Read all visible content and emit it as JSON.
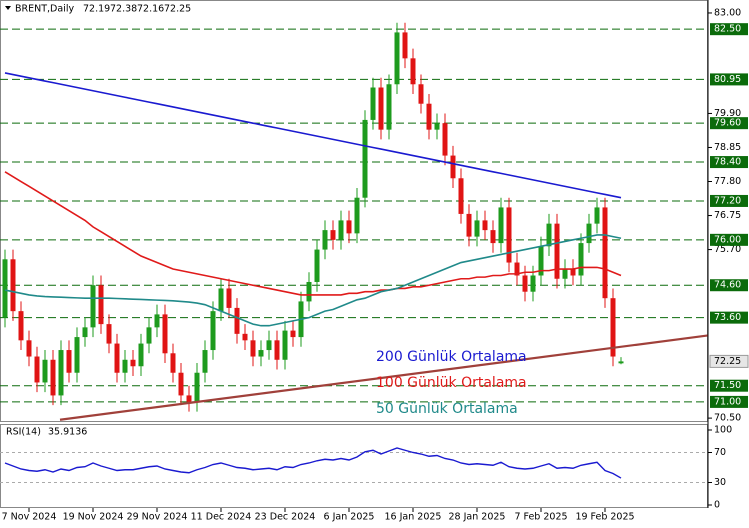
{
  "chart_data": {
    "type": "candlestick",
    "title": "BRENT,Daily",
    "categories": [
      null,
      null,
      null,
      "7 Nov 2024",
      null,
      null,
      null,
      null,
      null,
      null,
      null,
      "19 Nov 2024",
      null,
      null,
      null,
      null,
      null,
      null,
      null,
      "29 Nov 2024",
      null,
      null,
      null,
      null,
      null,
      null,
      null,
      "11 Dec 2024",
      null,
      null,
      null,
      null,
      null,
      null,
      null,
      "23 Dec 2024",
      null,
      null,
      null,
      null,
      null,
      null,
      null,
      "6 Jan 2025",
      null,
      null,
      null,
      null,
      null,
      null,
      null,
      "16 Jan 2025",
      null,
      null,
      null,
      null,
      null,
      null,
      null,
      "28 Jan 2025",
      null,
      null,
      null,
      null,
      null,
      null,
      null,
      "7 Feb 2025",
      null,
      null,
      null,
      null,
      null,
      null,
      null,
      "19 Feb 2025",
      null,
      null
    ],
    "ohlc": {
      "open": [
        73.6,
        75.4,
        73.8,
        72.9,
        72.4,
        71.6,
        72.3,
        71.2,
        72.6,
        71.9,
        73.0,
        73.3,
        74.6,
        73.4,
        72.8,
        71.9,
        72.3,
        72.1,
        72.8,
        73.3,
        73.7,
        72.5,
        71.9,
        71.2,
        71.0,
        71.9,
        72.6,
        73.8,
        74.5,
        73.9,
        73.1,
        72.9,
        72.4,
        72.6,
        72.9,
        72.3,
        73.2,
        73.0,
        74.1,
        74.7,
        75.7,
        76.3,
        76.0,
        76.6,
        76.2,
        77.3,
        79.7,
        80.7,
        79.4,
        80.8,
        82.4,
        81.6,
        80.8,
        80.2,
        79.4,
        79.6,
        78.6,
        77.9,
        76.8,
        76.1,
        76.6,
        76.3,
        75.9,
        77.0,
        75.3,
        74.9,
        74.4,
        74.9,
        75.8,
        76.5,
        74.8,
        75.1,
        74.9,
        75.9,
        76.5,
        77.0,
        74.2,
        72.19
      ],
      "high": [
        75.7,
        75.7,
        74.1,
        73.2,
        72.7,
        72.6,
        72.6,
        72.9,
        72.9,
        73.3,
        73.6,
        74.9,
        74.9,
        73.7,
        73.1,
        72.6,
        72.6,
        73.1,
        73.6,
        74.0,
        74.0,
        72.8,
        72.2,
        71.5,
        72.2,
        72.9,
        74.1,
        74.8,
        74.8,
        74.2,
        73.4,
        73.2,
        72.9,
        73.2,
        73.2,
        73.5,
        73.5,
        74.4,
        75.0,
        76.0,
        76.6,
        76.6,
        76.9,
        76.9,
        77.6,
        80.0,
        81.0,
        81.0,
        81.1,
        82.7,
        82.7,
        81.9,
        81.1,
        80.5,
        79.9,
        79.9,
        78.9,
        78.2,
        77.1,
        76.9,
        76.9,
        76.6,
        77.3,
        77.3,
        75.6,
        75.2,
        75.2,
        76.1,
        76.8,
        76.8,
        75.4,
        75.4,
        76.2,
        76.8,
        77.3,
        77.3,
        74.5,
        72.38
      ],
      "low": [
        73.3,
        73.5,
        72.6,
        72.1,
        71.3,
        71.3,
        70.9,
        70.9,
        71.6,
        71.6,
        72.7,
        73.0,
        73.1,
        72.5,
        71.6,
        71.6,
        71.8,
        71.8,
        72.5,
        73.0,
        72.2,
        71.6,
        70.9,
        70.7,
        70.7,
        71.6,
        72.3,
        73.5,
        73.6,
        72.8,
        72.6,
        72.1,
        72.1,
        72.3,
        72.0,
        72.0,
        72.7,
        72.7,
        73.8,
        74.4,
        75.4,
        75.7,
        75.7,
        75.9,
        75.9,
        77.0,
        79.4,
        79.1,
        79.1,
        80.5,
        81.3,
        80.5,
        79.9,
        79.1,
        79.1,
        78.3,
        77.6,
        76.5,
        75.8,
        75.8,
        76.0,
        75.6,
        75.6,
        75.0,
        74.6,
        74.1,
        74.1,
        74.6,
        75.5,
        74.5,
        74.5,
        74.6,
        74.6,
        75.6,
        76.2,
        73.9,
        72.1,
        72.16
      ],
      "close": [
        75.4,
        73.8,
        72.9,
        72.4,
        71.6,
        72.3,
        71.2,
        72.6,
        71.9,
        73.0,
        73.3,
        74.6,
        73.4,
        72.8,
        71.9,
        72.3,
        72.1,
        72.8,
        73.3,
        73.7,
        72.5,
        71.9,
        71.2,
        71.0,
        71.9,
        72.6,
        73.8,
        74.5,
        73.9,
        73.1,
        72.9,
        72.4,
        72.6,
        72.9,
        72.3,
        73.2,
        73.0,
        74.1,
        74.7,
        75.7,
        76.3,
        76.0,
        76.6,
        76.2,
        77.3,
        79.7,
        80.7,
        79.4,
        80.8,
        82.4,
        81.6,
        80.8,
        80.2,
        79.4,
        79.6,
        78.6,
        77.9,
        76.8,
        76.1,
        76.6,
        76.3,
        75.9,
        77.0,
        75.3,
        74.9,
        74.4,
        74.9,
        75.8,
        76.5,
        74.8,
        75.1,
        74.9,
        75.9,
        76.5,
        77.0,
        74.2,
        72.4,
        72.25
      ]
    },
    "up_color": "#1e9b1e",
    "down_color": "#e01414",
    "series": [
      {
        "name": "200 Günlük Ortalama",
        "color": "#1a1ad0",
        "values": [
          81.15,
          81.1,
          81.05,
          81,
          80.95,
          80.9,
          80.85,
          80.8,
          80.75,
          80.7,
          80.65,
          80.6,
          80.55,
          80.5,
          80.45,
          80.4,
          80.35,
          80.3,
          80.25,
          80.2,
          80.15,
          80.1,
          80.05,
          80,
          79.95,
          79.9,
          79.85,
          79.8,
          79.75,
          79.7,
          79.65,
          79.6,
          79.55,
          79.5,
          79.45,
          79.4,
          79.35,
          79.3,
          79.25,
          79.2,
          79.15,
          79.1,
          79.05,
          79,
          78.95,
          78.9,
          78.85,
          78.8,
          78.75,
          78.7,
          78.65,
          78.6,
          78.55,
          78.5,
          78.45,
          78.4,
          78.35,
          78.3,
          78.25,
          78.2,
          78.15,
          78.1,
          78.05,
          78,
          77.95,
          77.9,
          77.85,
          77.8,
          77.75,
          77.7,
          77.65,
          77.6,
          77.55,
          77.5,
          77.45,
          77.4,
          77.35,
          77.3
        ]
      },
      {
        "name": "100 Günlük Ortalama",
        "color": "#e01a1a",
        "values": [
          78.1,
          77.95,
          77.8,
          77.65,
          77.5,
          77.35,
          77.2,
          77.05,
          76.9,
          76.75,
          76.6,
          76.4,
          76.25,
          76.1,
          75.95,
          75.8,
          75.65,
          75.5,
          75.4,
          75.3,
          75.2,
          75.1,
          75.05,
          75.0,
          74.95,
          74.9,
          74.85,
          74.8,
          74.75,
          74.7,
          74.65,
          74.6,
          74.55,
          74.5,
          74.45,
          74.4,
          74.35,
          74.3,
          74.3,
          74.3,
          74.3,
          74.3,
          74.3,
          74.35,
          74.35,
          74.4,
          74.4,
          74.45,
          74.45,
          74.5,
          74.5,
          74.55,
          74.55,
          74.6,
          74.65,
          74.7,
          74.75,
          74.8,
          74.8,
          74.85,
          74.85,
          74.9,
          74.9,
          74.95,
          74.95,
          75.0,
          75.0,
          75.05,
          75.05,
          75.1,
          75.1,
          75.1,
          75.15,
          75.15,
          75.15,
          75.1,
          75.0,
          74.9
        ]
      },
      {
        "name": "50 Günlük Ortalama",
        "color": "#208a8a",
        "values": [
          74.45,
          74.4,
          74.35,
          74.3,
          74.27,
          74.25,
          74.24,
          74.23,
          74.22,
          74.21,
          74.2,
          74.2,
          74.2,
          74.2,
          74.19,
          74.18,
          74.17,
          74.16,
          74.15,
          74.14,
          74.13,
          74.12,
          74.1,
          74.08,
          74.05,
          74.0,
          73.9,
          73.8,
          73.7,
          73.6,
          73.5,
          73.4,
          73.35,
          73.35,
          73.4,
          73.45,
          73.5,
          73.55,
          73.6,
          73.7,
          73.8,
          73.85,
          73.95,
          74.05,
          74.15,
          74.2,
          74.3,
          74.4,
          74.45,
          74.5,
          74.6,
          74.7,
          74.8,
          74.9,
          75.0,
          75.1,
          75.2,
          75.3,
          75.35,
          75.4,
          75.45,
          75.5,
          75.55,
          75.6,
          75.65,
          75.7,
          75.75,
          75.8,
          75.85,
          75.9,
          75.95,
          76.0,
          76.05,
          76.1,
          76.15,
          76.15,
          76.1,
          76.05
        ]
      }
    ],
    "trendline": {
      "color": "#a0403a",
      "values": [
        70.45,
        73.05
      ]
    },
    "level_color": "#0b6b0b",
    "levels": [
      {
        "value": 82.5,
        "label": "82.50"
      },
      {
        "value": 80.95,
        "label": "80.95"
      },
      {
        "value": 79.6,
        "label": "79.60"
      },
      {
        "value": 78.4,
        "label": "78.40"
      },
      {
        "value": 77.2,
        "label": "77.20"
      },
      {
        "value": 76,
        "label": "76.00"
      },
      {
        "value": 74.6,
        "label": "74.60"
      },
      {
        "value": 73.6,
        "label": "73.60"
      },
      {
        "value": 71.5,
        "label": "71.50"
      },
      {
        "value": 71,
        "label": "71.00"
      }
    ],
    "ylim": [
      70.38,
      83.4
    ],
    "yticks": [
      {
        "value": 83,
        "label": "83.00"
      },
      {
        "value": 79.9,
        "label": "79.90"
      },
      {
        "value": 78.85,
        "label": "78.85"
      },
      {
        "value": 77.8,
        "label": "77.80"
      },
      {
        "value": 76.75,
        "label": "76.75"
      },
      {
        "value": 75.7,
        "label": "75.70"
      },
      {
        "value": 70.5,
        "label": "70.50"
      }
    ],
    "rsi": {
      "name": "RSI(14)",
      "color": "#1a1ad0",
      "values": [
        56,
        52,
        48,
        46,
        45,
        47,
        44,
        48,
        46,
        50,
        51,
        56,
        52,
        49,
        46,
        47,
        47,
        49,
        51,
        52,
        48,
        46,
        44,
        43,
        47,
        50,
        54,
        56,
        53,
        50,
        49,
        47,
        48,
        49,
        47,
        51,
        50,
        54,
        56,
        59,
        61,
        60,
        62,
        60,
        64,
        71,
        73,
        68,
        72,
        76,
        73,
        70,
        68,
        65,
        66,
        62,
        60,
        56,
        54,
        55,
        54,
        53,
        57,
        51,
        49,
        48,
        49,
        52,
        55,
        49,
        50,
        49,
        53,
        55,
        57,
        46,
        42,
        35.9136
      ],
      "ylim": [
        -4,
        108
      ],
      "yticks": [
        100,
        70,
        30,
        0
      ]
    }
  }
}
